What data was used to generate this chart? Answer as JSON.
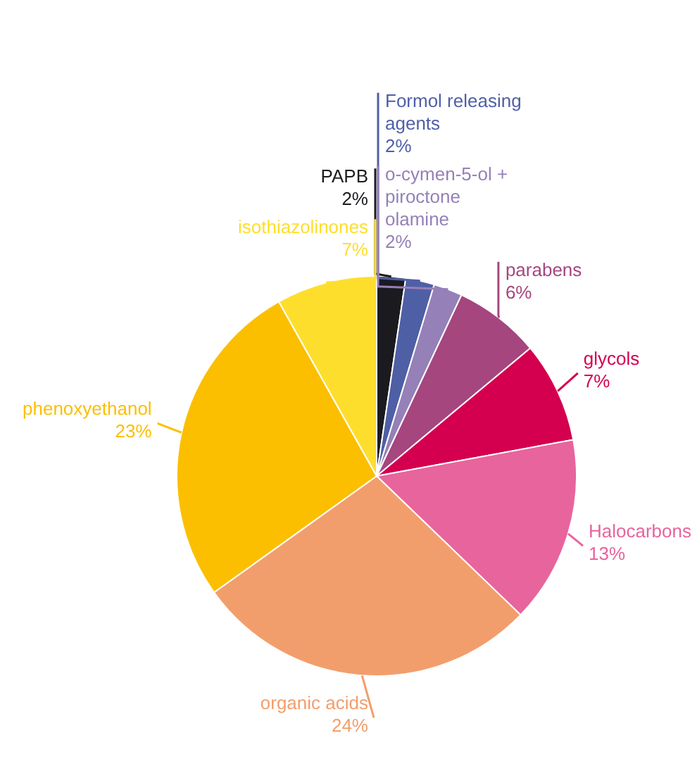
{
  "chart_data": {
    "type": "pie",
    "categories": [
      "PAPB",
      "Formol releasing agents",
      "o-cymen-5-ol + piroctone olamine",
      "parabens",
      "glycols",
      "Halocarbons",
      "organic acids",
      "phenoxyethanol",
      "isothiazolinones"
    ],
    "values": [
      2,
      2,
      2,
      6,
      7,
      13,
      24,
      23,
      7
    ],
    "value_labels": [
      "2%",
      "2%",
      "2%",
      "6%",
      "7%",
      "13%",
      "24%",
      "23%",
      "7%"
    ],
    "colors": [
      "#1b1a1f",
      "#4f5fa6",
      "#9580b8",
      "#a5467f",
      "#d4004f",
      "#e8649c",
      "#f29e6c",
      "#fbbf00",
      "#fede2d"
    ],
    "legend": false
  }
}
